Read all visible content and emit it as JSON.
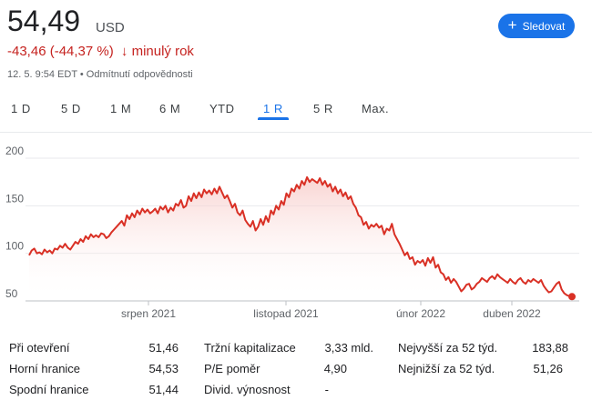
{
  "header": {
    "price": "54,49",
    "currency": "USD",
    "change": "-43,46 (-44,37 %)",
    "change_arrow": "↓",
    "change_period": "minulý rok",
    "meta": "12. 5. 9:54 EDT • Odmítnutí odpovědnosti",
    "follow_label": "Sledovat",
    "follow_icon": "plus-icon"
  },
  "tabs": [
    "1 D",
    "5 D",
    "1 M",
    "6 M",
    "YTD",
    "1 R",
    "5 R",
    "Max."
  ],
  "active_tab": "1 R",
  "colors": {
    "line": "#d93025",
    "accent": "#1a73e8",
    "negative": "#c5221f"
  },
  "chart_data": {
    "type": "area",
    "y_ticks": [
      "200",
      "150",
      "100",
      "50"
    ],
    "x_tick_labels": [
      "srpen 2021",
      "listopad 2021",
      "únor 2022",
      "duben 2022"
    ],
    "ylim": [
      50,
      200
    ],
    "grid": true,
    "values": [
      98,
      103,
      105,
      100,
      101,
      99,
      104,
      101,
      103,
      100,
      105,
      104,
      108,
      106,
      110,
      106,
      104,
      108,
      112,
      110,
      115,
      112,
      118,
      115,
      120,
      117,
      119,
      117,
      121,
      120,
      116,
      118,
      122,
      125,
      128,
      131,
      134,
      129,
      140,
      136,
      142,
      138,
      145,
      141,
      147,
      143,
      146,
      142,
      144,
      147,
      142,
      149,
      146,
      150,
      143,
      148,
      145,
      152,
      150,
      156,
      148,
      150,
      160,
      155,
      163,
      158,
      164,
      159,
      167,
      163,
      166,
      162,
      168,
      163,
      170,
      164,
      158,
      161,
      155,
      148,
      152,
      143,
      140,
      145,
      135,
      131,
      128,
      134,
      124,
      128,
      136,
      130,
      139,
      133,
      145,
      141,
      150,
      146,
      155,
      151,
      163,
      159,
      168,
      165,
      172,
      168,
      176,
      172,
      180,
      175,
      178,
      176,
      174,
      179,
      172,
      176,
      170,
      173,
      165,
      170,
      163,
      167,
      160,
      164,
      157,
      160,
      152,
      148,
      140,
      138,
      130,
      133,
      126,
      130,
      128,
      131,
      127,
      129,
      120,
      126,
      124,
      131,
      120,
      115,
      110,
      104,
      98,
      101,
      94,
      96,
      88,
      92,
      90,
      93,
      87,
      95,
      90,
      96,
      85,
      88,
      80,
      78,
      72,
      75,
      69,
      73,
      70,
      65,
      60,
      63,
      67,
      68,
      62,
      64,
      68,
      70,
      74,
      72,
      70,
      74,
      76,
      73,
      78,
      75,
      73,
      71,
      69,
      73,
      70,
      68,
      72,
      74,
      70,
      68,
      72,
      70,
      73,
      71,
      69,
      72,
      66,
      62,
      59,
      60,
      64,
      68,
      70,
      62,
      58,
      56,
      55,
      54.49
    ]
  },
  "stats": {
    "col1": [
      {
        "label": "Při otevření",
        "value": "51,46"
      },
      {
        "label": "Horní hranice",
        "value": "54,53"
      },
      {
        "label": "Spodní hranice",
        "value": "51,44"
      }
    ],
    "col2": [
      {
        "label": "Tržní kapitalizace",
        "value": "3,33 mld."
      },
      {
        "label": "P/E poměr",
        "value": "4,90"
      },
      {
        "label": "Divid. výnosnost",
        "value": "-"
      }
    ],
    "col3": [
      {
        "label": "Nejvyšší za 52 týd.",
        "value": "183,88"
      },
      {
        "label": "Nejnižší za 52 týd.",
        "value": "51,26"
      }
    ]
  }
}
